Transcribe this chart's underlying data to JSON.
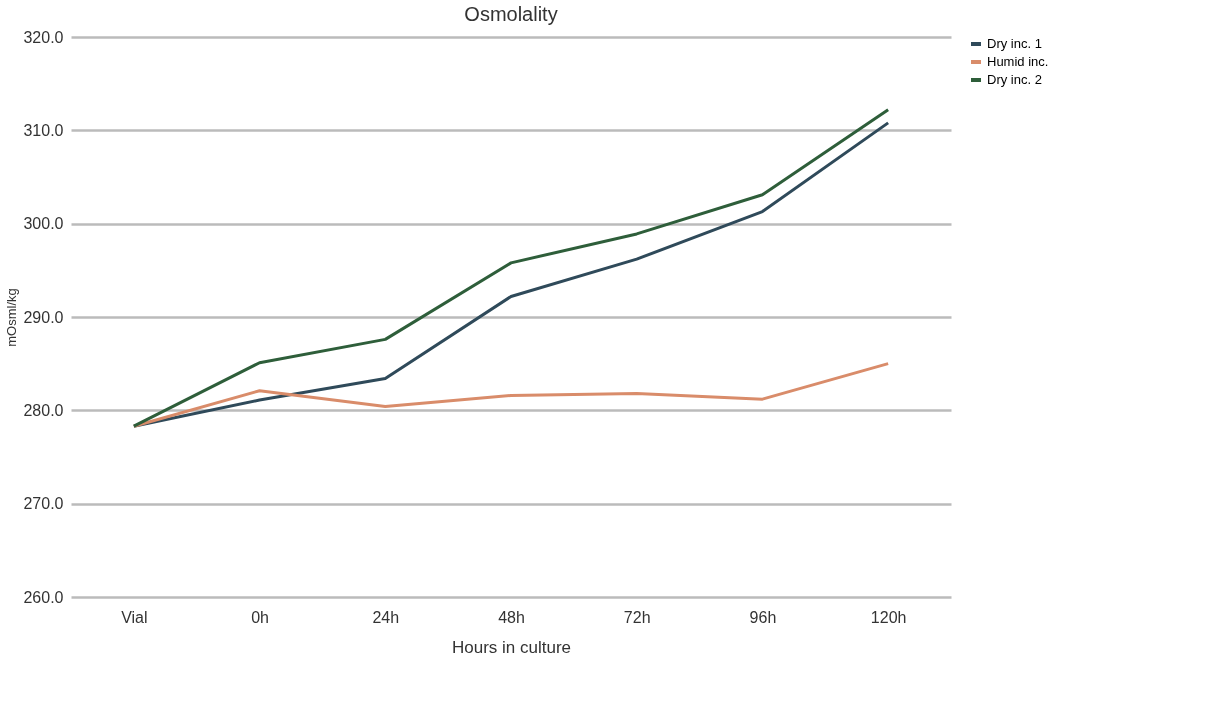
{
  "chart_data": {
    "type": "line",
    "title": "Osmolality",
    "xlabel": "Hours in culture",
    "ylabel": "mOsml/kg",
    "categories": [
      "Vial",
      "0h",
      "24h",
      "48h",
      "72h",
      "96h",
      "120h"
    ],
    "series": [
      {
        "name": "Dry inc. 1",
        "color": "#2f4a5a",
        "values": [
          278.3,
          281.1,
          283.4,
          292.2,
          296.2,
          301.3,
          310.8
        ]
      },
      {
        "name": "Humid inc.",
        "color": "#d98c6a",
        "values": [
          278.3,
          282.1,
          280.4,
          281.6,
          281.8,
          281.2,
          285.0
        ]
      },
      {
        "name": "Dry inc. 2",
        "color": "#2e5e3a",
        "values": [
          278.3,
          285.1,
          287.6,
          295.8,
          298.9,
          303.1,
          312.2
        ]
      }
    ],
    "ylim": [
      260,
      320
    ],
    "yticks": [
      {
        "value": 260,
        "label": "260.0"
      },
      {
        "value": 270,
        "label": "270.0"
      },
      {
        "value": 280,
        "label": "280.0"
      },
      {
        "value": 290,
        "label": "290.0"
      },
      {
        "value": 300,
        "label": "300.0"
      },
      {
        "value": 310,
        "label": "310.0"
      },
      {
        "value": 320,
        "label": "320.0"
      }
    ],
    "grid": "y",
    "legend": "right",
    "marker": "none",
    "line_style": "solid"
  }
}
